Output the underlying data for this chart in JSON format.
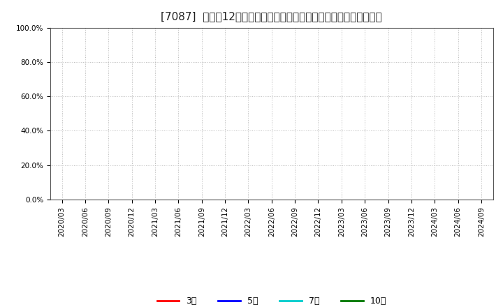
{
  "title": "[7087]  売上高12か月移動合計の対前年同期増減率の標準偏差の推移",
  "ylim": [
    0.0,
    1.0
  ],
  "yticks": [
    0.0,
    0.2,
    0.4,
    0.6,
    0.8,
    1.0
  ],
  "ytick_labels": [
    "0.0%",
    "20.0%",
    "40.0%",
    "60.0%",
    "80.0%",
    "100.0%"
  ],
  "xtick_labels": [
    "2020/03",
    "2020/06",
    "2020/09",
    "2020/12",
    "2021/03",
    "2021/06",
    "2021/09",
    "2021/12",
    "2022/03",
    "2022/06",
    "2022/09",
    "2022/12",
    "2023/03",
    "2023/06",
    "2023/09",
    "2023/12",
    "2024/03",
    "2024/06",
    "2024/09"
  ],
  "legend_labels": [
    "3年",
    "5年",
    "7年",
    "10年"
  ],
  "legend_colors": [
    "#ff0000",
    "#0000ff",
    "#00cccc",
    "#007700"
  ],
  "background_color": "#ffffff",
  "grid_color": "#bbbbbb",
  "title_fontsize": 11,
  "axis_fontsize": 7.5,
  "legend_fontsize": 9
}
